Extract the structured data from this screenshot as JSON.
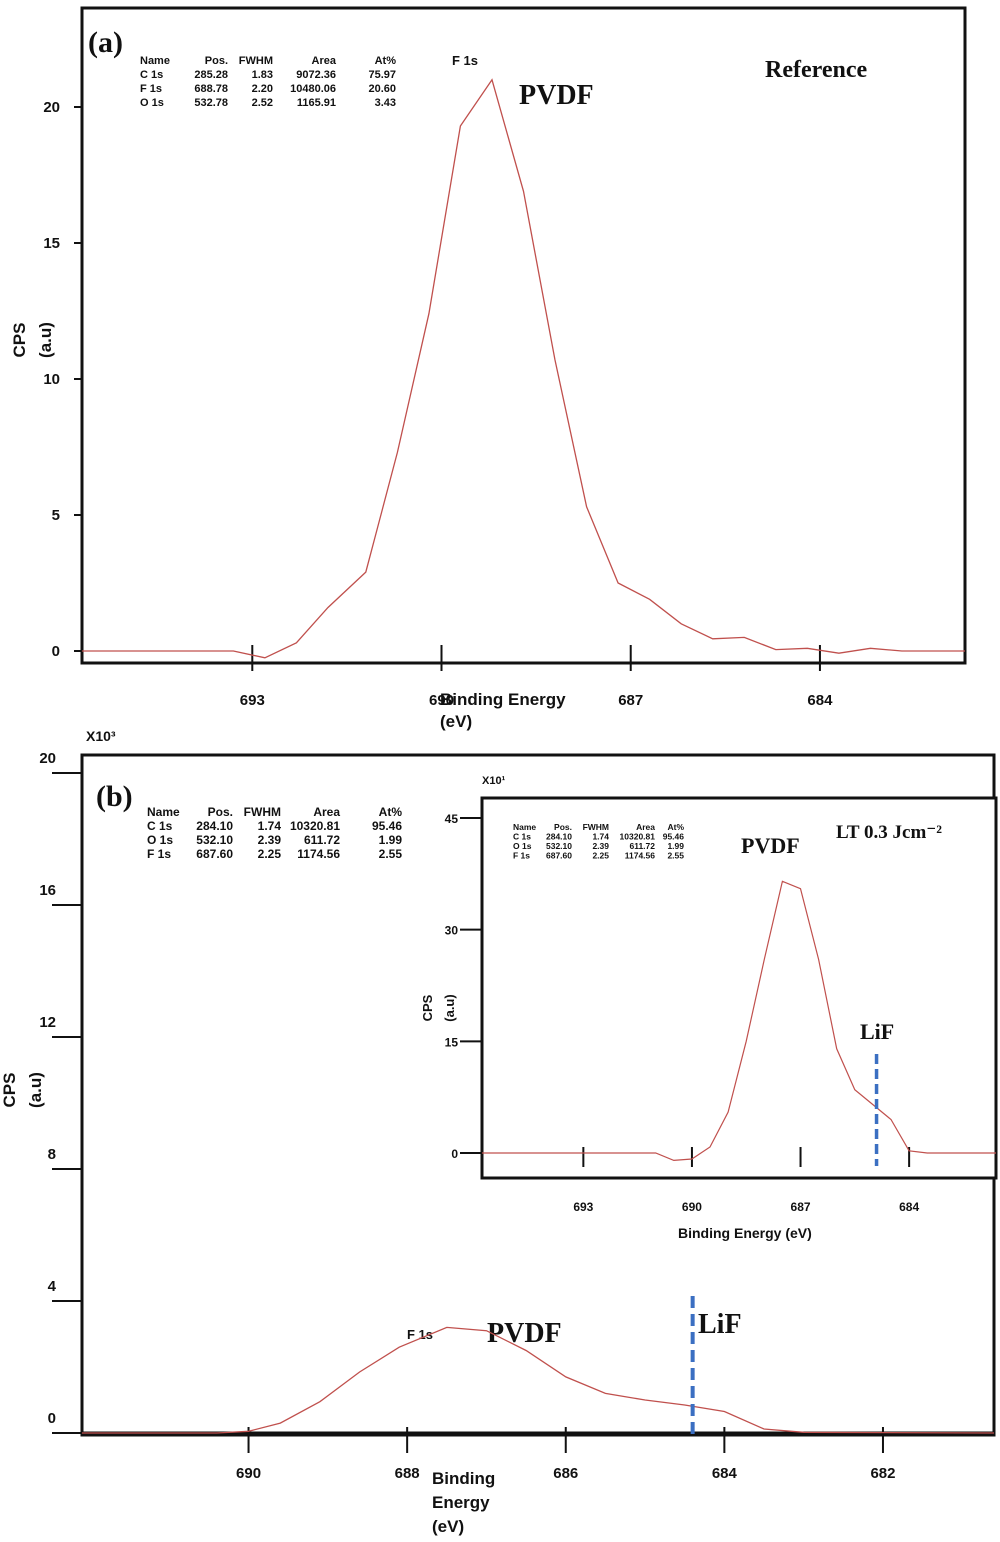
{
  "chart_data": [
    {
      "panel": "(a)",
      "type": "line",
      "title": "Reference",
      "annotations": [
        "PVDF",
        "F 1s"
      ],
      "xlabel": "Binding Energy\n(eV)",
      "ylabel": "CPS\n(a.u)",
      "xlim": [
        695.7,
        681.7
      ],
      "ylim": [
        0,
        20
      ],
      "x_ticks": [
        "693",
        "690",
        "687",
        "684"
      ],
      "y_ticks": [
        "0",
        "5",
        "10",
        "15",
        "20"
      ],
      "table": {
        "headers": [
          "Name",
          "Pos.",
          "FWHM",
          "Area",
          "At%"
        ],
        "rows": [
          [
            "C 1s",
            "285.28",
            "1.83",
            "9072.36",
            "75.97"
          ],
          [
            "F 1s",
            "688.78",
            "2.20",
            "10480.06",
            "20.60"
          ],
          [
            "O 1s",
            "532.78",
            "2.52",
            "1165.91",
            "3.43"
          ]
        ]
      },
      "series": [
        {
          "color": "#c0504d",
          "points": [
            [
              695.7,
              0
            ],
            [
              693.3,
              0
            ],
            [
              692.8,
              -0.25
            ],
            [
              692.3,
              0.3
            ],
            [
              691.8,
              1.6
            ],
            [
              691.2,
              2.9
            ],
            [
              690.7,
              7.3
            ],
            [
              690.2,
              12.4
            ],
            [
              689.7,
              19.3
            ],
            [
              689.2,
              21.0
            ],
            [
              688.7,
              16.9
            ],
            [
              688.2,
              10.7
            ],
            [
              687.7,
              5.3
            ],
            [
              687.2,
              2.5
            ],
            [
              686.7,
              1.9
            ],
            [
              686.2,
              1.0
            ],
            [
              685.7,
              0.45
            ],
            [
              685.2,
              0.5
            ],
            [
              684.7,
              0.05
            ],
            [
              684.2,
              0.1
            ],
            [
              683.7,
              -0.08
            ],
            [
              683.2,
              0.1
            ],
            [
              682.7,
              0.0
            ],
            [
              681.7,
              0.0
            ]
          ]
        }
      ]
    },
    {
      "panel": "(b)",
      "type": "line",
      "annotations": [
        "PVDF",
        "F 1s",
        "LiF"
      ],
      "xlabel": "Binding\nEnergy\n(eV)",
      "ylabel": "CPS\n(a.u)",
      "y_multiplier": "X10³",
      "xlim": [
        692.1,
        680.6
      ],
      "ylim": [
        0,
        20
      ],
      "x_ticks": [
        "690",
        "688",
        "686",
        "684",
        "682"
      ],
      "y_ticks": [
        "0",
        "4",
        "8",
        "12",
        "16",
        "20"
      ],
      "marker_line_x": 684.4,
      "table": {
        "headers": [
          "Name",
          "Pos.",
          "FWHM",
          "Area",
          "At%"
        ],
        "rows": [
          [
            "C 1s",
            "284.10",
            "1.74",
            "10320.81",
            "95.46"
          ],
          [
            "O 1s",
            "532.10",
            "2.39",
            "611.72",
            "1.99"
          ],
          [
            "F 1s",
            "687.60",
            "2.25",
            "1174.56",
            "2.55"
          ]
        ]
      },
      "series": [
        {
          "color": "#c0504d",
          "points": [
            [
              692.1,
              0
            ],
            [
              690.4,
              0
            ],
            [
              690.0,
              0.05
            ],
            [
              689.6,
              0.3
            ],
            [
              689.1,
              0.95
            ],
            [
              688.6,
              1.85
            ],
            [
              688.1,
              2.6
            ],
            [
              687.5,
              3.2
            ],
            [
              687.0,
              3.1
            ],
            [
              686.5,
              2.5
            ],
            [
              686.0,
              1.7
            ],
            [
              685.5,
              1.2
            ],
            [
              685.0,
              1.0
            ],
            [
              684.5,
              0.85
            ],
            [
              684.0,
              0.65
            ],
            [
              683.5,
              0.12
            ],
            [
              683.0,
              0.02
            ],
            [
              680.6,
              0.0
            ]
          ]
        }
      ]
    },
    {
      "panel": "(b) inset",
      "type": "line",
      "title": "LT 0.3 Jcm⁻²",
      "annotations": [
        "PVDF",
        "LiF"
      ],
      "xlabel": "Binding Energy (eV)",
      "ylabel": "CPS\n(a.u)",
      "y_multiplier": "X10¹",
      "xlim": [
        695.8,
        681.6
      ],
      "ylim": [
        0,
        45
      ],
      "x_ticks": [
        "693",
        "690",
        "687",
        "684"
      ],
      "y_ticks": [
        "0",
        "15",
        "30",
        "45"
      ],
      "marker_line_x": 684.9,
      "table": {
        "headers": [
          "Name",
          "Pos.",
          "FWHM",
          "Area",
          "At%"
        ],
        "rows": [
          [
            "C 1s",
            "284.10",
            "1.74",
            "10320.81",
            "95.46"
          ],
          [
            "O 1s",
            "532.10",
            "2.39",
            "611.72",
            "1.99"
          ],
          [
            "F 1s",
            "687.60",
            "2.25",
            "1174.56",
            "2.55"
          ]
        ]
      },
      "series": [
        {
          "color": "#c0504d",
          "points": [
            [
              695.8,
              0
            ],
            [
              691.0,
              0
            ],
            [
              690.5,
              -1.0
            ],
            [
              690.0,
              -0.8
            ],
            [
              689.5,
              0.8
            ],
            [
              689.0,
              5.5
            ],
            [
              688.5,
              15.0
            ],
            [
              688.0,
              26.0
            ],
            [
              687.5,
              36.5
            ],
            [
              687.0,
              35.5
            ],
            [
              686.5,
              26.0
            ],
            [
              686.0,
              14.0
            ],
            [
              685.5,
              8.5
            ],
            [
              685.0,
              6.5
            ],
            [
              684.5,
              4.5
            ],
            [
              684.0,
              0.3
            ],
            [
              683.5,
              0.0
            ],
            [
              681.6,
              0.0
            ]
          ]
        }
      ]
    }
  ]
}
